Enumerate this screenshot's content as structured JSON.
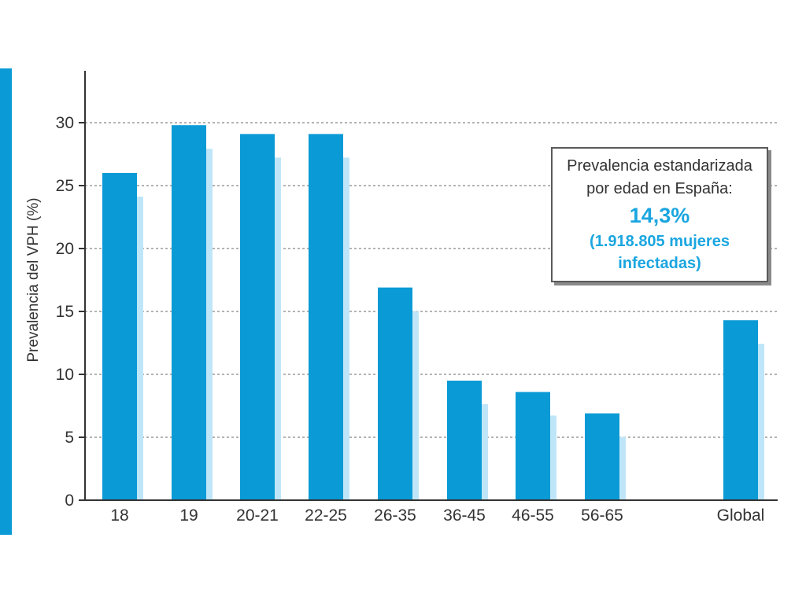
{
  "chart_data": {
    "type": "bar",
    "categories": [
      "18",
      "19",
      "20-21",
      "22-25",
      "26-35",
      "36-45",
      "46-55",
      "56-65",
      "Global"
    ],
    "values": [
      26,
      29.8,
      29.1,
      29.1,
      16.9,
      9.5,
      8.6,
      6.9,
      14.3
    ],
    "ylabel": "Prevalencia del VPH (%)",
    "xlabel": "",
    "ylim": [
      0,
      30
    ],
    "yticks": [
      0,
      5,
      10,
      15,
      20,
      25,
      30
    ],
    "grid": true,
    "colors": {
      "bar": "#0a9ad6",
      "bar_shadow": "#bfe6f8",
      "left_strip": "#0a9ad6",
      "highlight_text": "#1aa6e0"
    }
  },
  "callout": {
    "line1": "Prevalencia estandarizada",
    "line2": "por edad en España:",
    "value": "14,3%",
    "note_line1": "(1.918.805 mujeres",
    "note_line2": "infectadas)"
  }
}
